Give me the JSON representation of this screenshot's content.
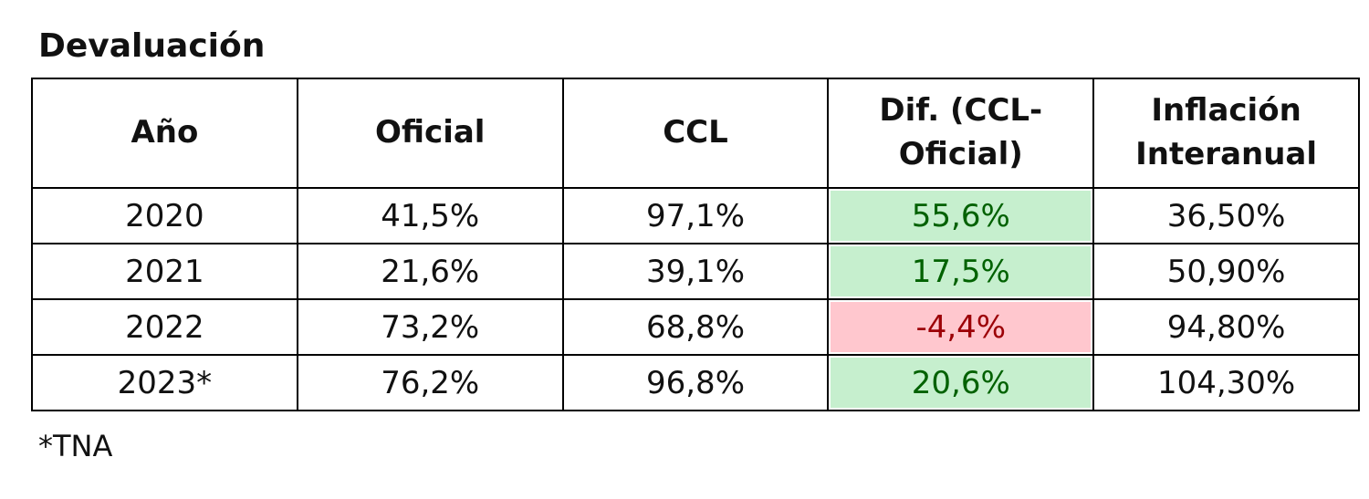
{
  "title": "Devaluación",
  "table": {
    "header": [
      "Año",
      "Oficial",
      "CCL",
      "Dif. (CCL-Oficial)",
      "Inflación Interanual"
    ],
    "rows": [
      [
        "2020",
        "41,5%",
        "97,1%",
        "55,6%",
        "36,50%"
      ],
      [
        "2021",
        "21,6%",
        "39,1%",
        "17,5%",
        "50,90%"
      ],
      [
        "2022",
        "73,2%",
        "68,8%",
        "-4,4%",
        "94,80%"
      ],
      [
        "2023*",
        "76,2%",
        "96,8%",
        "20,6%",
        "104,30%"
      ]
    ]
  },
  "footnote": "*TNA"
}
